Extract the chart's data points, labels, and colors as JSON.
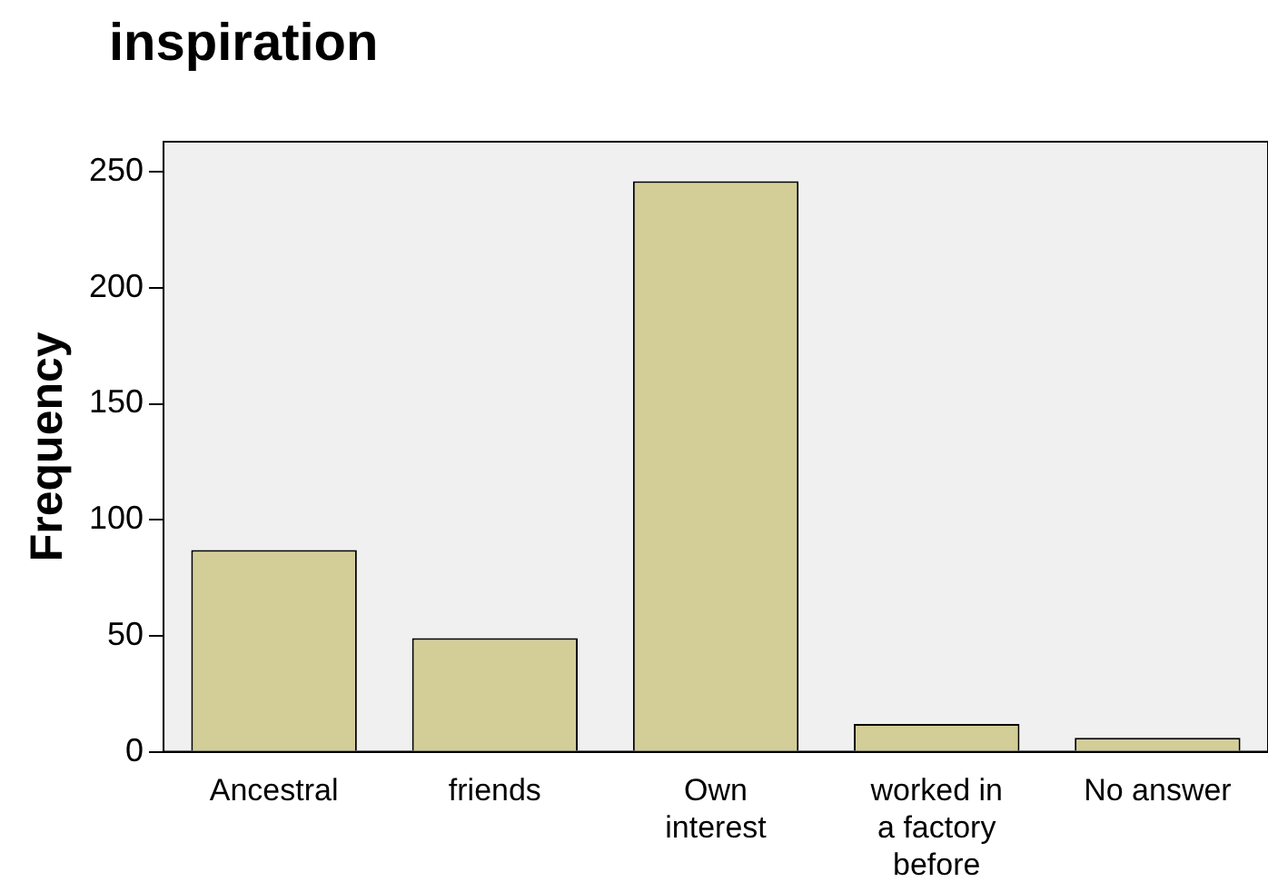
{
  "chart_data": {
    "type": "bar",
    "title": "inspiration",
    "ylabel": "Frequency",
    "categories": [
      "Ancestral",
      "friends",
      "Own interest",
      "worked in a factory before",
      "No answer"
    ],
    "values": [
      87,
      49,
      246,
      12,
      6
    ],
    "color": "#d3ce97",
    "ylim": [
      0,
      263
    ],
    "yticks": [
      0,
      50,
      100,
      150,
      200,
      250
    ],
    "grid": false,
    "legend": false
  }
}
